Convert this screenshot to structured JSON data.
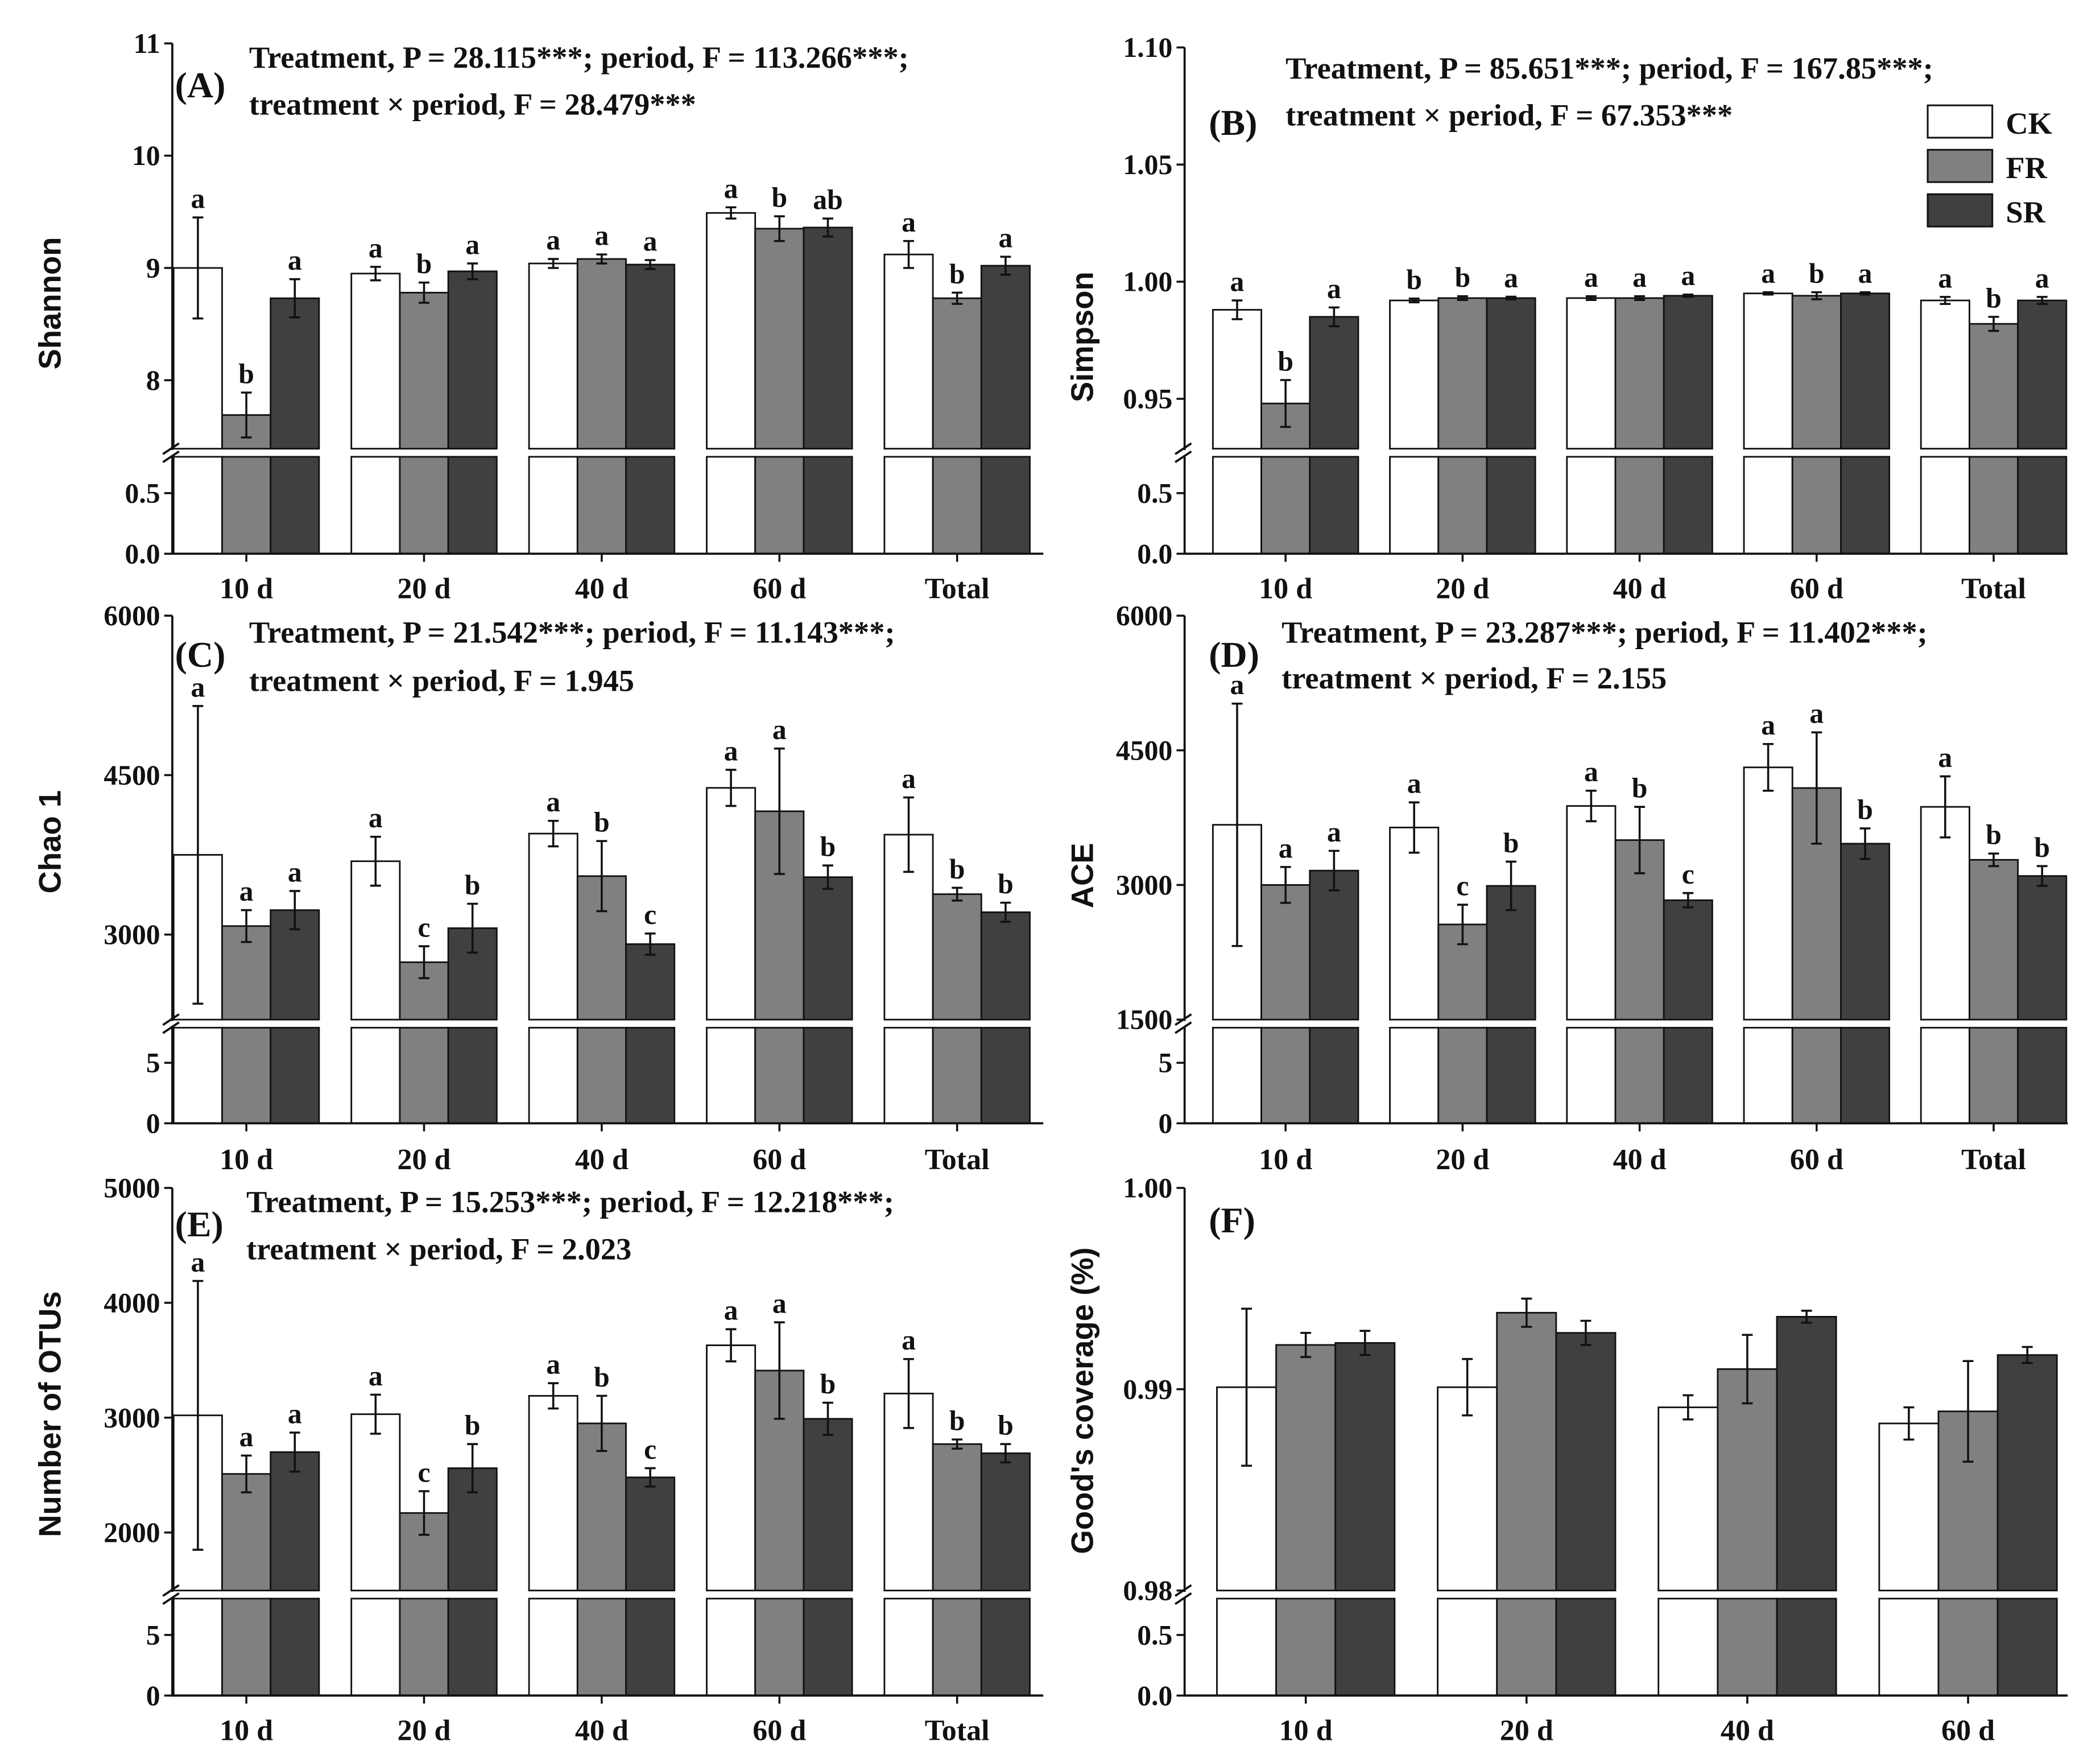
{
  "legend": [
    {
      "name": "CK",
      "color": "#ffffff"
    },
    {
      "name": "FR",
      "color": "#808080"
    },
    {
      "name": "SR",
      "color": "#404040"
    }
  ],
  "chart_data": [
    {
      "type": "bar",
      "panel": "(A)",
      "ylabel": "Shannon",
      "stats": [
        "Treatment, P = 28.115***; period, F = 113.266***;",
        "treatment × period, F = 28.479***"
      ],
      "categories": [
        "10 d",
        "20 d",
        "40 d",
        "60 d",
        "Total"
      ],
      "upper_ylim": [
        7.39,
        11
      ],
      "lower_ylim": [
        0,
        0.8
      ],
      "upper_ticks": [
        "8",
        "9",
        "10",
        "11"
      ],
      "lower_ticks": [
        "0.0",
        "0.5"
      ],
      "series": [
        {
          "name": "CK",
          "values": [
            9.0,
            8.95,
            9.04,
            9.49,
            9.12
          ],
          "errors": [
            0.45,
            0.06,
            0.04,
            0.05,
            0.12
          ],
          "letters": [
            "a",
            "a",
            "a",
            "a",
            "a"
          ]
        },
        {
          "name": "FR",
          "values": [
            7.69,
            8.78,
            9.08,
            9.35,
            8.73
          ],
          "errors": [
            0.2,
            0.09,
            0.04,
            0.11,
            0.05
          ],
          "letters": [
            "b",
            "b",
            "a",
            "b",
            "b"
          ]
        },
        {
          "name": "SR",
          "values": [
            8.73,
            8.97,
            9.03,
            9.36,
            9.02
          ],
          "errors": [
            0.17,
            0.07,
            0.04,
            0.08,
            0.08
          ],
          "letters": [
            "a",
            "a",
            "a",
            "ab",
            "a"
          ]
        }
      ]
    },
    {
      "type": "bar",
      "panel": "(B)",
      "ylabel": "Simpson",
      "stats": [
        "Treatment, P = 85.651***; period, F = 167.85***;",
        "treatment × period, F = 67.353***"
      ],
      "categories": [
        "10 d",
        "20 d",
        "40 d",
        "60 d",
        "Total"
      ],
      "upper_ylim": [
        0.9287,
        1.1
      ],
      "lower_ylim": [
        0,
        0.8
      ],
      "upper_ticks": [
        "0.95",
        "1.00",
        "1.05",
        "1.10"
      ],
      "lower_ticks": [
        "0.0",
        "0.5"
      ],
      "series": [
        {
          "name": "CK",
          "values": [
            0.988,
            0.992,
            0.993,
            0.995,
            0.992
          ],
          "errors": [
            0.004,
            0.0008,
            0.0008,
            0.0005,
            0.0015
          ],
          "letters": [
            "a",
            "b",
            "a",
            "a",
            "a"
          ]
        },
        {
          "name": "FR",
          "values": [
            0.948,
            0.993,
            0.993,
            0.994,
            0.982
          ],
          "errors": [
            0.01,
            0.0008,
            0.0008,
            0.0015,
            0.003
          ],
          "letters": [
            "b",
            "b",
            "a",
            "b",
            "b"
          ]
        },
        {
          "name": "SR",
          "values": [
            0.985,
            0.993,
            0.994,
            0.995,
            0.992
          ],
          "errors": [
            0.004,
            0.0006,
            0.0005,
            0.0005,
            0.0015
          ],
          "letters": [
            "a",
            "a",
            "a",
            "a",
            "a"
          ]
        }
      ]
    },
    {
      "type": "bar",
      "panel": "(C)",
      "ylabel": "Chao 1",
      "stats": [
        "Treatment, P = 21.542***; period, F = 11.143***;",
        "treatment × period, F = 1.945"
      ],
      "categories": [
        "10 d",
        "20 d",
        "40 d",
        "60 d",
        "Total"
      ],
      "upper_ylim": [
        2200,
        6000
      ],
      "lower_ylim": [
        0,
        7.9
      ],
      "upper_ticks": [
        "3000",
        "4500",
        "6000"
      ],
      "lower_ticks": [
        "0",
        "5"
      ],
      "series": [
        {
          "name": "CK",
          "values": [
            3750,
            3690,
            3950,
            4380,
            3940
          ],
          "errors": [
            1400,
            230,
            120,
            170,
            350
          ],
          "letters": [
            "a",
            "a",
            "a",
            "a",
            "a"
          ]
        },
        {
          "name": "FR",
          "values": [
            3080,
            2740,
            3550,
            4160,
            3380
          ],
          "errors": [
            150,
            150,
            330,
            590,
            60
          ],
          "letters": [
            "a",
            "c",
            "b",
            "a",
            "b"
          ]
        },
        {
          "name": "SR",
          "values": [
            3230,
            3060,
            2910,
            3540,
            3210
          ],
          "errors": [
            180,
            230,
            100,
            110,
            90
          ],
          "letters": [
            "a",
            "b",
            "c",
            "b",
            "b"
          ]
        }
      ]
    },
    {
      "type": "bar",
      "panel": "(D)",
      "ylabel": "ACE",
      "stats": [
        "Treatment, P = 23.287***; period, F = 11.402***;",
        "treatment × period, F = 2.155"
      ],
      "categories": [
        "10 d",
        "20 d",
        "40 d",
        "60 d",
        "Total"
      ],
      "upper_ylim": [
        1500,
        6000
      ],
      "lower_ylim": [
        0,
        7.9
      ],
      "upper_ticks": [
        "1500",
        "3000",
        "4500",
        "6000"
      ],
      "lower_ticks": [
        "0",
        "5"
      ],
      "series": [
        {
          "name": "CK",
          "values": [
            3670,
            3640,
            3880,
            4310,
            3870
          ],
          "errors": [
            1350,
            280,
            170,
            260,
            340
          ],
          "letters": [
            "a",
            "a",
            "a",
            "a",
            "a"
          ]
        },
        {
          "name": "FR",
          "values": [
            3000,
            2560,
            3500,
            4080,
            3280
          ],
          "errors": [
            200,
            220,
            370,
            620,
            70
          ],
          "letters": [
            "a",
            "c",
            "b",
            "a",
            "b"
          ]
        },
        {
          "name": "SR",
          "values": [
            3160,
            2990,
            2830,
            3460,
            3100
          ],
          "errors": [
            220,
            270,
            80,
            170,
            110
          ],
          "letters": [
            "a",
            "b",
            "c",
            "b",
            "b"
          ]
        }
      ]
    },
    {
      "type": "bar",
      "panel": "(E)",
      "ylabel": "Number of OTUs",
      "stats": [
        "Treatment, P = 15.253***; period, F = 12.218***;",
        "treatment × period, F = 2.023"
      ],
      "categories": [
        "10 d",
        "20 d",
        "40 d",
        "60 d",
        "Total"
      ],
      "upper_ylim": [
        1495,
        5000
      ],
      "lower_ylim": [
        0,
        8
      ],
      "upper_ticks": [
        "2000",
        "3000",
        "4000",
        "5000"
      ],
      "lower_ticks": [
        "0",
        "5"
      ],
      "series": [
        {
          "name": "CK",
          "values": [
            3020,
            3030,
            3190,
            3630,
            3210
          ],
          "errors": [
            1170,
            170,
            110,
            140,
            300
          ],
          "letters": [
            "a",
            "a",
            "a",
            "a",
            "a"
          ]
        },
        {
          "name": "FR",
          "values": [
            2510,
            2170,
            2950,
            3410,
            2770
          ],
          "errors": [
            160,
            190,
            240,
            420,
            40
          ],
          "letters": [
            "a",
            "c",
            "b",
            "a",
            "b"
          ]
        },
        {
          "name": "SR",
          "values": [
            2700,
            2560,
            2480,
            2990,
            2690
          ],
          "errors": [
            170,
            210,
            80,
            140,
            80
          ],
          "letters": [
            "a",
            "b",
            "c",
            "b",
            "b"
          ]
        }
      ]
    },
    {
      "type": "bar",
      "panel": "(F)",
      "ylabel": "Good's coverage (%)",
      "stats": [],
      "categories": [
        "10 d",
        "20 d",
        "40 d",
        "60 d"
      ],
      "upper_ylim": [
        0.98,
        1.0
      ],
      "lower_ylim": [
        0,
        0.8
      ],
      "upper_ticks": [
        "0.98",
        "0.99",
        "1.00"
      ],
      "lower_ticks": [
        "0.0",
        "0.5"
      ],
      "series": [
        {
          "name": "CK",
          "values": [
            0.9901,
            0.9901,
            0.9891,
            0.9883
          ],
          "errors": [
            0.0039,
            0.0014,
            0.0006,
            0.0008
          ],
          "letters": []
        },
        {
          "name": "FR",
          "values": [
            0.9922,
            0.9938,
            0.991,
            0.9889
          ],
          "errors": [
            0.0006,
            0.0007,
            0.0017,
            0.0025
          ],
          "letters": []
        },
        {
          "name": "SR",
          "values": [
            0.9923,
            0.9928,
            0.9936,
            0.9917
          ],
          "errors": [
            0.0006,
            0.0006,
            0.0003,
            0.0004
          ],
          "letters": []
        }
      ]
    }
  ]
}
